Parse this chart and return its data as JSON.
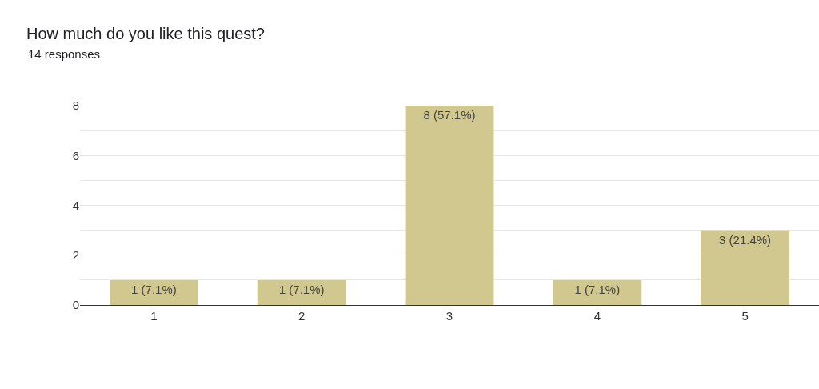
{
  "chart_data": {
    "type": "bar",
    "title": "How much do you like this quest?",
    "subtitle": "14 responses",
    "categories": [
      "1",
      "2",
      "3",
      "4",
      "5"
    ],
    "values": [
      1,
      1,
      8,
      1,
      3
    ],
    "value_labels": [
      "1 (7.1%)",
      "1 (7.1%)",
      "8 (57.1%)",
      "1 (7.1%)",
      "3 (21.4%)"
    ],
    "color": "#d0c88e",
    "ylim": [
      0,
      8
    ],
    "yticks": [
      0,
      {
        "value": 1,
        "label": null
      },
      2,
      {
        "value": 3,
        "label": null
      },
      4,
      {
        "value": 5,
        "label": null
      },
      6,
      {
        "value": 7,
        "label": null
      },
      8
    ],
    "grid": "y",
    "legend": false
  }
}
